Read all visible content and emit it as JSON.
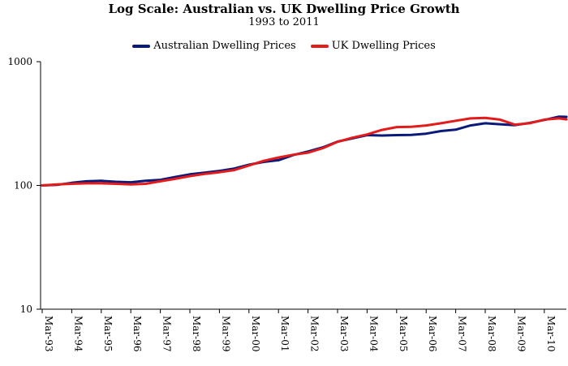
{
  "chart_data": {
    "type": "line",
    "title": "Log Scale: Australian vs. UK  Dwelling Price Growth",
    "subtitle": "1993 to 2011",
    "xlabel": "",
    "ylabel": "",
    "y_scale": "log",
    "ylim": [
      10,
      1000
    ],
    "y_ticks": [
      "10",
      "100",
      "1000"
    ],
    "x_ticks": [
      "Mar-93",
      "Mar-94",
      "Mar-95",
      "Mar-96",
      "Mar-97",
      "Mar-98",
      "Mar-99",
      "Mar-00",
      "Mar-01",
      "Mar-02",
      "Mar-03",
      "Mar-04",
      "Mar-05",
      "Mar-06",
      "Mar-07",
      "Mar-08",
      "Mar-09",
      "Mar-10"
    ],
    "grid": false,
    "legend_position": "top",
    "x": [
      "Mar-93",
      "Sep-93",
      "Mar-94",
      "Sep-94",
      "Mar-95",
      "Sep-95",
      "Mar-96",
      "Sep-96",
      "Mar-97",
      "Sep-97",
      "Mar-98",
      "Sep-98",
      "Mar-99",
      "Sep-99",
      "Mar-00",
      "Sep-00",
      "Mar-01",
      "Sep-01",
      "Mar-02",
      "Sep-02",
      "Mar-03",
      "Sep-03",
      "Mar-04",
      "Sep-04",
      "Mar-05",
      "Sep-05",
      "Mar-06",
      "Sep-06",
      "Mar-07",
      "Sep-07",
      "Mar-08",
      "Sep-08",
      "Mar-09",
      "Sep-09",
      "Mar-10",
      "Sep-10",
      "Dec-10"
    ],
    "series": [
      {
        "name": "Australian Dwelling Prices",
        "color": "#0a1a7a",
        "values": [
          100,
          101,
          105,
          108,
          109,
          107,
          106,
          109,
          111,
          117,
          123,
          127,
          131,
          137,
          147,
          155,
          160,
          176,
          188,
          203,
          226,
          240,
          255,
          253,
          255,
          256,
          262,
          275,
          282,
          305,
          318,
          312,
          307,
          320,
          338,
          360,
          358
        ]
      },
      {
        "name": "UK Dwelling Prices",
        "color": "#e41b1b",
        "values": [
          100,
          102,
          103,
          104,
          104,
          103,
          102,
          103,
          108,
          113,
          119,
          124,
          128,
          133,
          145,
          158,
          168,
          177,
          184,
          200,
          225,
          243,
          258,
          281,
          296,
          298,
          305,
          318,
          333,
          348,
          352,
          340,
          310,
          318,
          340,
          348,
          342
        ]
      }
    ]
  }
}
